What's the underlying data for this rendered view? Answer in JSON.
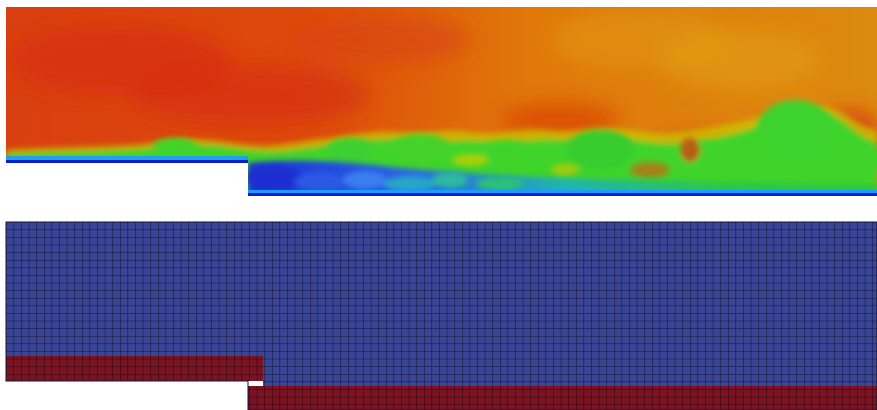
{
  "figure": {
    "top_panel": {
      "kind": "flow-field-contour",
      "colormap": [
        "#0a1fd0",
        "#1e9bff",
        "#22c86a",
        "#3fd42a",
        "#c8d400",
        "#e79b00",
        "#e25a00",
        "#d63300"
      ]
    },
    "bottom_panel": {
      "kind": "computational-mesh",
      "block_colors": {
        "fluid_block": "#3a4596",
        "wall_block": "#7a1424",
        "grid_lines": "#101530"
      }
    }
  }
}
